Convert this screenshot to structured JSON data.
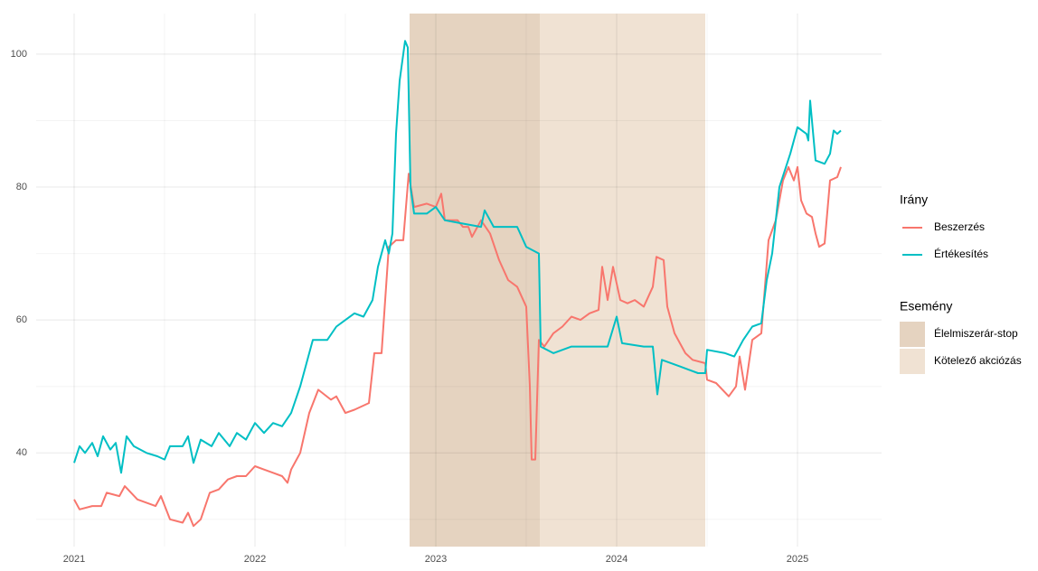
{
  "chart_data": {
    "type": "line",
    "xlim": [
      2020.79,
      2025.465
    ],
    "ylim": [
      25.9,
      106.1
    ],
    "xticks": [
      2021,
      2022,
      2023,
      2024,
      2025
    ],
    "yticks": [
      40,
      60,
      80,
      100
    ],
    "minor_xticks": [
      2021.5,
      2022.5,
      2023.5,
      2024.5
    ],
    "minor_yticks": [
      30,
      50,
      70,
      90
    ],
    "grid": true,
    "legend_title": "Irány",
    "events_title": "Esemény",
    "events": [
      {
        "name": "Élelmiszerár-stop",
        "color": "#e5d3c0",
        "start": 2022.855,
        "end": 2023.575
      },
      {
        "name": "Kötelező akciózás",
        "color": "#f0e2d3",
        "start": 2023.575,
        "end": 2024.49
      }
    ],
    "series": [
      {
        "name": "Beszerzés",
        "color": "#f8766d",
        "x": [
          2021.0,
          2021.03,
          2021.1,
          2021.15,
          2021.18,
          2021.25,
          2021.28,
          2021.35,
          2021.45,
          2021.48,
          2021.53,
          2021.6,
          2021.63,
          2021.66,
          2021.7,
          2021.75,
          2021.8,
          2021.85,
          2021.9,
          2021.95,
          2022.0,
          2022.05,
          2022.1,
          2022.15,
          2022.18,
          2022.2,
          2022.25,
          2022.3,
          2022.35,
          2022.42,
          2022.45,
          2022.5,
          2022.55,
          2022.63,
          2022.66,
          2022.7,
          2022.74,
          2022.78,
          2022.82,
          2022.85,
          2022.88,
          2022.95,
          2023.0,
          2023.03,
          2023.05,
          2023.12,
          2023.15,
          2023.18,
          2023.2,
          2023.25,
          2023.3,
          2023.35,
          2023.4,
          2023.45,
          2023.5,
          2023.52,
          2023.53,
          2023.55,
          2023.57,
          2023.6,
          2023.65,
          2023.7,
          2023.75,
          2023.8,
          2023.85,
          2023.9,
          2023.92,
          2023.95,
          2023.98,
          2024.02,
          2024.06,
          2024.1,
          2024.15,
          2024.2,
          2024.22,
          2024.26,
          2024.28,
          2024.32,
          2024.38,
          2024.42,
          2024.49,
          2024.5,
          2024.55,
          2024.62,
          2024.66,
          2024.68,
          2024.71,
          2024.75,
          2024.8,
          2024.84,
          2024.88,
          2024.92,
          2024.95,
          2024.98,
          2025.0,
          2025.02,
          2025.05,
          2025.08,
          2025.1,
          2025.12,
          2025.15,
          2025.18,
          2025.22,
          2025.24
        ],
        "values": [
          33,
          31.5,
          32,
          32,
          34,
          33.5,
          35,
          33,
          32,
          33.5,
          30,
          29.5,
          31,
          29,
          30,
          34,
          34.5,
          36,
          36.5,
          36.5,
          38,
          37.5,
          37,
          36.5,
          35.5,
          37.5,
          40,
          46,
          49.5,
          48,
          48.5,
          46,
          46.5,
          47.5,
          55,
          55,
          71,
          72,
          72,
          82,
          77,
          77.5,
          77,
          79,
          75,
          75,
          74,
          74,
          72.5,
          75,
          73,
          69,
          66,
          65,
          62,
          50,
          39,
          39,
          57,
          56,
          58,
          59,
          60.5,
          60,
          61,
          61.5,
          68,
          63,
          68,
          63,
          62.5,
          63,
          62,
          65,
          69.5,
          69,
          62,
          58,
          55,
          54,
          53.5,
          51,
          50.5,
          48.5,
          50,
          54.5,
          49.5,
          57,
          58,
          72,
          75,
          81,
          83,
          81,
          83,
          78,
          76,
          75.5,
          73,
          71,
          71.5,
          81,
          81.5,
          83
        ]
      },
      {
        "name": "Értékesítés",
        "color": "#00bfc4",
        "x": [
          2021.0,
          2021.03,
          2021.06,
          2021.1,
          2021.13,
          2021.16,
          2021.2,
          2021.23,
          2021.26,
          2021.29,
          2021.33,
          2021.4,
          2021.46,
          2021.5,
          2021.53,
          2021.6,
          2021.63,
          2021.66,
          2021.7,
          2021.76,
          2021.8,
          2021.86,
          2021.9,
          2021.95,
          2022.0,
          2022.05,
          2022.1,
          2022.15,
          2022.2,
          2022.25,
          2022.32,
          2022.4,
          2022.45,
          2022.55,
          2022.6,
          2022.65,
          2022.68,
          2022.72,
          2022.74,
          2022.76,
          2022.78,
          2022.8,
          2022.83,
          2022.845,
          2022.86,
          2022.88,
          2022.95,
          2023.0,
          2023.05,
          2023.15,
          2023.25,
          2023.27,
          2023.32,
          2023.45,
          2023.5,
          2023.57,
          2023.58,
          2023.65,
          2023.75,
          2023.85,
          2023.95,
          2024.0,
          2024.03,
          2024.15,
          2024.2,
          2024.225,
          2024.25,
          2024.35,
          2024.45,
          2024.49,
          2024.5,
          2024.6,
          2024.65,
          2024.7,
          2024.75,
          2024.8,
          2024.83,
          2024.86,
          2024.9,
          2024.96,
          2025.0,
          2025.05,
          2025.06,
          2025.07,
          2025.1,
          2025.15,
          2025.18,
          2025.2,
          2025.22,
          2025.24
        ],
        "values": [
          38.5,
          41,
          40,
          41.5,
          39.5,
          42.5,
          40.5,
          41.5,
          37,
          42.5,
          41,
          40,
          39.5,
          39,
          41,
          41,
          42.5,
          38.5,
          42,
          41,
          43,
          41,
          43,
          42,
          44.5,
          43,
          44.5,
          44,
          46,
          50,
          57,
          57,
          59,
          61,
          60.5,
          63,
          68,
          72,
          70,
          73,
          88,
          96,
          102,
          101,
          80,
          76,
          76,
          77,
          75,
          74.5,
          74,
          76.5,
          74,
          74,
          71,
          70,
          56,
          55,
          56,
          56,
          56,
          60.5,
          56.5,
          56,
          56,
          48.8,
          54,
          53,
          52,
          52,
          55.5,
          55,
          54.5,
          57,
          59,
          59.5,
          66,
          70,
          80,
          85,
          89,
          88,
          87,
          93,
          84,
          83.5,
          85,
          88.5,
          88,
          88.5
        ]
      }
    ]
  }
}
